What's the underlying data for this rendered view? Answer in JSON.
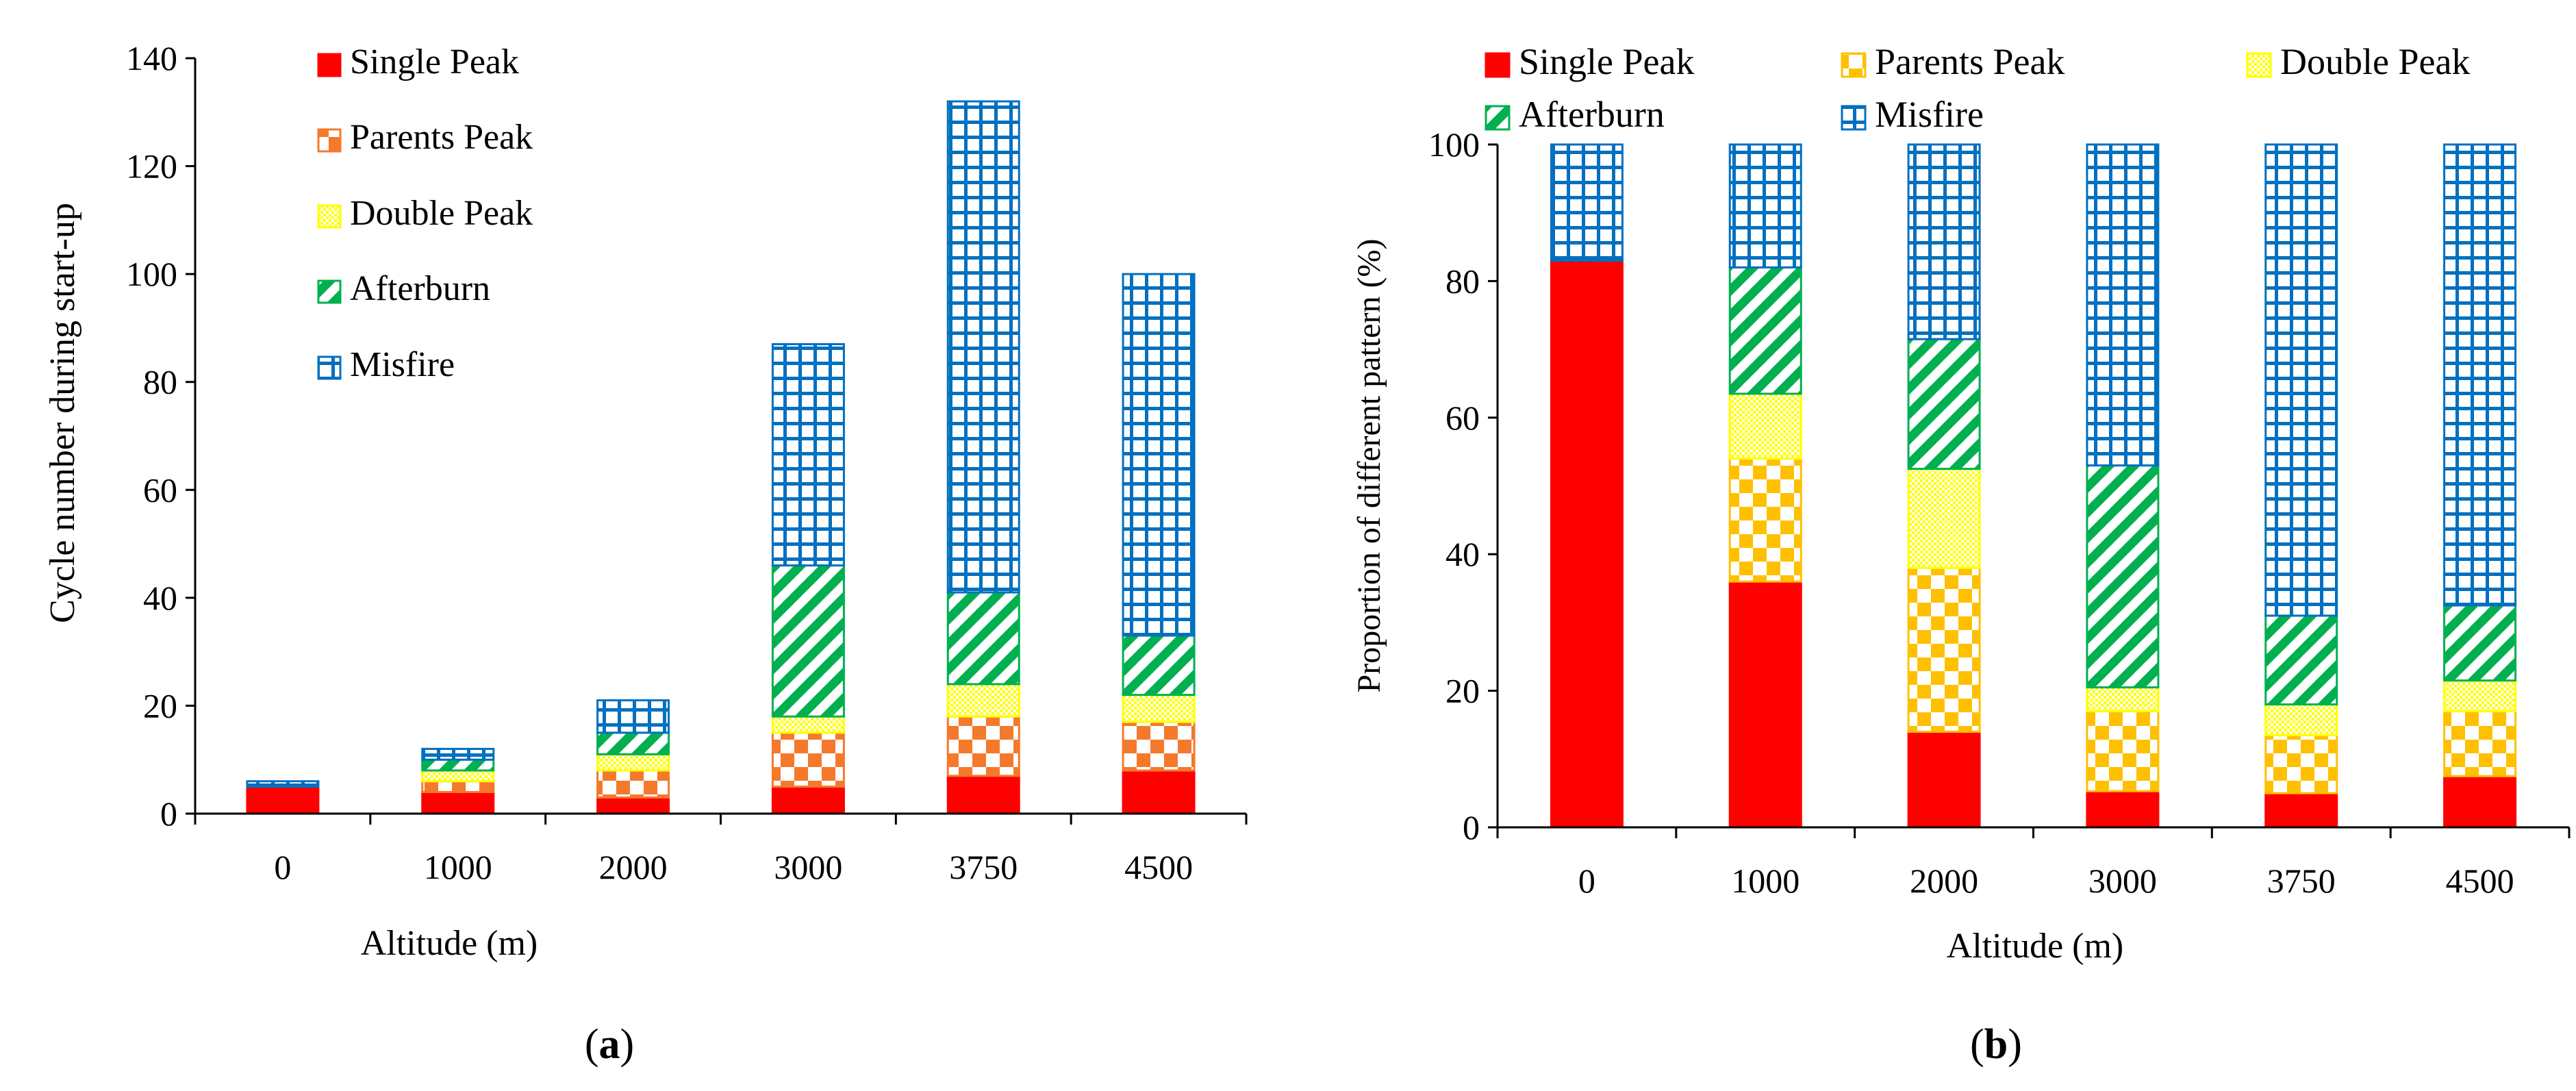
{
  "colors": {
    "single_peak": "#ff0000",
    "parents_peak": "#ffc000",
    "parents_peak_a": "#f4792b",
    "double_peak": "#ffff00",
    "afterburn": "#00b050",
    "misfire": "#0070c0",
    "axis": "#000000"
  },
  "chart_data": [
    {
      "id": "a",
      "type": "bar",
      "stacked": true,
      "panel_label": "(a)",
      "panel_letter": "a",
      "xlabel": "Altitude (m)",
      "ylabel": "Cycle number during start-up",
      "categories": [
        "0",
        "1000",
        "2000",
        "3000",
        "3750",
        "4500"
      ],
      "ylim": [
        0,
        140
      ],
      "yticks": [
        "0",
        "20",
        "40",
        "60",
        "80",
        "100",
        "120",
        "140"
      ],
      "legend_position": "top-left, vertical",
      "series": [
        {
          "name": "Single Peak",
          "values": [
            5,
            4,
            3,
            5,
            7,
            8
          ]
        },
        {
          "name": "Parents Peak",
          "values": [
            0,
            2,
            5,
            10,
            11,
            9
          ]
        },
        {
          "name": "Double Peak",
          "values": [
            0,
            2,
            3,
            3,
            6,
            5
          ]
        },
        {
          "name": "Afterburn",
          "values": [
            0,
            2,
            4,
            28,
            17,
            11
          ]
        },
        {
          "name": "Misfire",
          "values": [
            1,
            2,
            6,
            41,
            91,
            67
          ]
        }
      ]
    },
    {
      "id": "b",
      "type": "bar",
      "stacked": true,
      "panel_label": "(b)",
      "panel_letter": "b",
      "xlabel": "Altitude (m)",
      "ylabel": "Proportion of different pattern   (%)",
      "categories": [
        "0",
        "1000",
        "2000",
        "3000",
        "3750",
        "4500"
      ],
      "ylim": [
        0,
        100
      ],
      "yticks": [
        "0",
        "20",
        "40",
        "60",
        "80",
        "100"
      ],
      "legend_position": "top, three columns",
      "series": [
        {
          "name": "Single Peak",
          "values": [
            83,
            36,
            14,
            5.3,
            5,
            7.5
          ]
        },
        {
          "name": "Parents Peak",
          "values": [
            0,
            18,
            24,
            11.7,
            8.5,
            9.5
          ]
        },
        {
          "name": "Double Peak",
          "values": [
            0,
            9.5,
            14.5,
            3.5,
            4.5,
            4.5
          ]
        },
        {
          "name": "Afterburn",
          "values": [
            0,
            18.5,
            19,
            32.5,
            13,
            11
          ]
        },
        {
          "name": "Misfire",
          "values": [
            17,
            18,
            28.5,
            47,
            69,
            67.5
          ]
        }
      ]
    }
  ]
}
